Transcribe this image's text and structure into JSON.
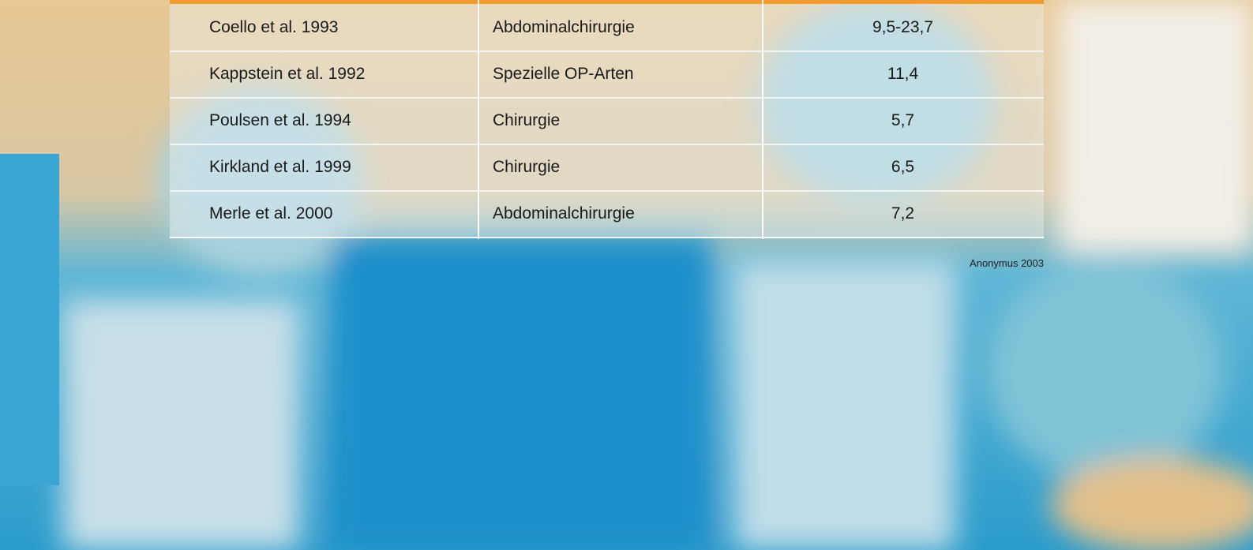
{
  "table": {
    "rows": [
      [
        "Coello et al. 1993",
        "Abdominalchirurgie",
        "9,5-23,7"
      ],
      [
        "Kappstein et al. 1992",
        "Spezielle OP-Arten",
        "11,4"
      ],
      [
        "Poulsen et al. 1994",
        "Chirurgie",
        "5,7"
      ],
      [
        "Kirkland et al. 1999",
        "Chirurgie",
        "6,5"
      ],
      [
        "Merle et al. 2000",
        "Abdominalchirurgie",
        "7,2"
      ]
    ]
  },
  "source": "Anonymus 2003"
}
